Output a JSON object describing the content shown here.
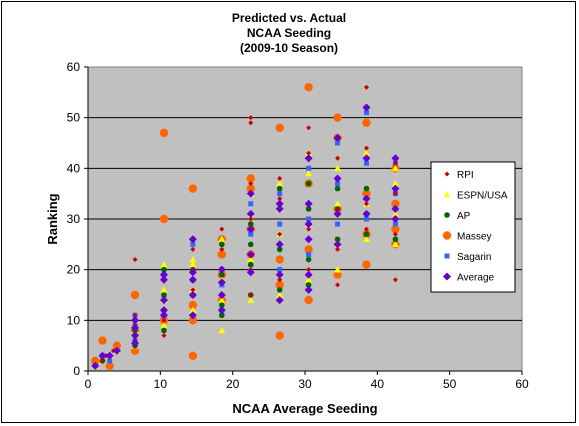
{
  "chart_data": {
    "type": "scatter",
    "title": [
      "Predicted vs. Actual",
      "NCAA Seeding",
      "(2009-10 Season)"
    ],
    "xlabel": "NCAA Average Seeding",
    "ylabel": "Ranking",
    "xlim": [
      0,
      60
    ],
    "ylim": [
      0,
      60
    ],
    "xticks": [
      0,
      10,
      20,
      30,
      40,
      50,
      60
    ],
    "yticks": [
      0,
      10,
      20,
      30,
      40,
      50,
      60
    ],
    "grid": "horizontal major gridlines",
    "legend_position": "right",
    "plot_background": "#c0c0c0",
    "series": [
      {
        "name": "RPI",
        "color": "#cc0000",
        "marker": "diamond-small",
        "points": [
          [
            1,
            1
          ],
          [
            2,
            2
          ],
          [
            2.5,
            3
          ],
          [
            3.5,
            4
          ],
          [
            6.5,
            6
          ],
          [
            6.5,
            9
          ],
          [
            6.5,
            11
          ],
          [
            6.5,
            22
          ],
          [
            10.5,
            7
          ],
          [
            10.5,
            10
          ],
          [
            10.5,
            14
          ],
          [
            10.5,
            18
          ],
          [
            14.5,
            11
          ],
          [
            14.5,
            16
          ],
          [
            14.5,
            20
          ],
          [
            14.5,
            24
          ],
          [
            18.5,
            12
          ],
          [
            18.5,
            20
          ],
          [
            18.5,
            24
          ],
          [
            18.5,
            28
          ],
          [
            22.5,
            15
          ],
          [
            22.5,
            20
          ],
          [
            22.5,
            30
          ],
          [
            22.5,
            37
          ],
          [
            22.5,
            49
          ],
          [
            22.5,
            50
          ],
          [
            26.5,
            18
          ],
          [
            26.5,
            27
          ],
          [
            26.5,
            34
          ],
          [
            26.5,
            38
          ],
          [
            30.5,
            20
          ],
          [
            30.5,
            28
          ],
          [
            30.5,
            43
          ],
          [
            30.5,
            48
          ],
          [
            34.5,
            17
          ],
          [
            34.5,
            24
          ],
          [
            34.5,
            32
          ],
          [
            34.5,
            42
          ],
          [
            38.5,
            28
          ],
          [
            38.5,
            33
          ],
          [
            38.5,
            44
          ],
          [
            38.5,
            56
          ],
          [
            42.5,
            18
          ],
          [
            42.5,
            27
          ],
          [
            42.5,
            35
          ],
          [
            42.5,
            41
          ]
        ]
      },
      {
        "name": "ESPN/USA",
        "color": "#ffff00",
        "marker": "triangle",
        "points": [
          [
            1,
            1
          ],
          [
            2,
            2
          ],
          [
            3,
            3
          ],
          [
            4,
            4
          ],
          [
            6.5,
            5
          ],
          [
            6.5,
            8
          ],
          [
            6.5,
            10
          ],
          [
            10.5,
            9
          ],
          [
            10.5,
            14
          ],
          [
            10.5,
            16
          ],
          [
            10.5,
            21
          ],
          [
            14.5,
            12
          ],
          [
            14.5,
            16
          ],
          [
            14.5,
            21
          ],
          [
            14.5,
            22
          ],
          [
            18.5,
            8
          ],
          [
            18.5,
            14
          ],
          [
            18.5,
            18
          ],
          [
            18.5,
            26
          ],
          [
            22.5,
            14
          ],
          [
            22.5,
            22
          ],
          [
            22.5,
            31
          ],
          [
            22.5,
            35
          ],
          [
            26.5,
            15
          ],
          [
            26.5,
            27
          ],
          [
            26.5,
            32
          ],
          [
            26.5,
            37
          ],
          [
            30.5,
            18
          ],
          [
            30.5,
            29
          ],
          [
            30.5,
            39
          ],
          [
            30.5,
            43
          ],
          [
            34.5,
            20
          ],
          [
            34.5,
            25
          ],
          [
            34.5,
            33
          ],
          [
            34.5,
            40
          ],
          [
            38.5,
            26
          ],
          [
            38.5,
            33
          ],
          [
            38.5,
            43
          ],
          [
            42.5,
            25
          ],
          [
            42.5,
            31
          ],
          [
            42.5,
            37
          ],
          [
            42.5,
            40
          ]
        ]
      },
      {
        "name": "AP",
        "color": "#006400",
        "marker": "circle-small",
        "points": [
          [
            1,
            1
          ],
          [
            2,
            2
          ],
          [
            3,
            3
          ],
          [
            4,
            4
          ],
          [
            6.5,
            5
          ],
          [
            6.5,
            8
          ],
          [
            6.5,
            10
          ],
          [
            10.5,
            8
          ],
          [
            10.5,
            12
          ],
          [
            10.5,
            15
          ],
          [
            10.5,
            20
          ],
          [
            14.5,
            11
          ],
          [
            14.5,
            15
          ],
          [
            14.5,
            20
          ],
          [
            14.5,
            26
          ],
          [
            18.5,
            11
          ],
          [
            18.5,
            13
          ],
          [
            18.5,
            19
          ],
          [
            18.5,
            25
          ],
          [
            22.5,
            15
          ],
          [
            22.5,
            21
          ],
          [
            22.5,
            25
          ],
          [
            22.5,
            29
          ],
          [
            26.5,
            16
          ],
          [
            26.5,
            24
          ],
          [
            26.5,
            33
          ],
          [
            26.5,
            36
          ],
          [
            30.5,
            17
          ],
          [
            30.5,
            22
          ],
          [
            30.5,
            32
          ],
          [
            30.5,
            37
          ],
          [
            34.5,
            26
          ],
          [
            34.5,
            32
          ],
          [
            34.5,
            36
          ],
          [
            38.5,
            27
          ],
          [
            38.5,
            31
          ],
          [
            38.5,
            36
          ],
          [
            42.5,
            26
          ],
          [
            42.5,
            32
          ],
          [
            42.5,
            36
          ]
        ]
      },
      {
        "name": "Massey",
        "color": "#ff6600",
        "marker": "circle-large",
        "points": [
          [
            1,
            2
          ],
          [
            2,
            6
          ],
          [
            3,
            1
          ],
          [
            4,
            5
          ],
          [
            6.5,
            4
          ],
          [
            6.5,
            8
          ],
          [
            6.5,
            15
          ],
          [
            10.5,
            10
          ],
          [
            10.5,
            30
          ],
          [
            10.5,
            47
          ],
          [
            14.5,
            3
          ],
          [
            14.5,
            10
          ],
          [
            14.5,
            13
          ],
          [
            14.5,
            36
          ],
          [
            18.5,
            14
          ],
          [
            18.5,
            19
          ],
          [
            18.5,
            23
          ],
          [
            18.5,
            26
          ],
          [
            22.5,
            23
          ],
          [
            22.5,
            28
          ],
          [
            22.5,
            36
          ],
          [
            22.5,
            38
          ],
          [
            26.5,
            7
          ],
          [
            26.5,
            17
          ],
          [
            26.5,
            22
          ],
          [
            26.5,
            48
          ],
          [
            30.5,
            14
          ],
          [
            30.5,
            24
          ],
          [
            30.5,
            37
          ],
          [
            30.5,
            56
          ],
          [
            34.5,
            19
          ],
          [
            34.5,
            32
          ],
          [
            34.5,
            46
          ],
          [
            34.5,
            50
          ],
          [
            38.5,
            21
          ],
          [
            38.5,
            27
          ],
          [
            38.5,
            35
          ],
          [
            38.5,
            49
          ],
          [
            42.5,
            25
          ],
          [
            42.5,
            28
          ],
          [
            42.5,
            33
          ],
          [
            42.5,
            40
          ]
        ]
      },
      {
        "name": "Sagarin",
        "color": "#3366ff",
        "marker": "square",
        "points": [
          [
            1,
            1
          ],
          [
            2,
            3
          ],
          [
            3,
            2
          ],
          [
            4,
            4
          ],
          [
            6.5,
            6
          ],
          [
            6.5,
            9
          ],
          [
            6.5,
            11
          ],
          [
            10.5,
            11
          ],
          [
            10.5,
            15
          ],
          [
            10.5,
            19
          ],
          [
            14.5,
            15
          ],
          [
            14.5,
            18
          ],
          [
            14.5,
            25
          ],
          [
            18.5,
            12
          ],
          [
            18.5,
            17
          ],
          [
            18.5,
            20
          ],
          [
            22.5,
            21
          ],
          [
            22.5,
            27
          ],
          [
            22.5,
            33
          ],
          [
            26.5,
            20
          ],
          [
            26.5,
            29
          ],
          [
            26.5,
            35
          ],
          [
            30.5,
            23
          ],
          [
            30.5,
            30
          ],
          [
            30.5,
            40
          ],
          [
            34.5,
            29
          ],
          [
            34.5,
            37
          ],
          [
            34.5,
            45
          ],
          [
            38.5,
            30
          ],
          [
            38.5,
            41
          ],
          [
            38.5,
            51
          ],
          [
            42.5,
            29
          ],
          [
            42.5,
            35
          ],
          [
            42.5,
            41
          ]
        ]
      },
      {
        "name": "Average",
        "color": "#6600cc",
        "marker": "diamond",
        "points": [
          [
            1,
            1
          ],
          [
            2,
            3
          ],
          [
            3,
            3
          ],
          [
            4,
            4
          ],
          [
            6.5,
            5.5
          ],
          [
            6.5,
            7
          ],
          [
            6.5,
            8.5
          ],
          [
            6.5,
            10
          ],
          [
            10.5,
            11
          ],
          [
            10.5,
            12
          ],
          [
            10.5,
            14
          ],
          [
            10.5,
            18
          ],
          [
            10.5,
            19
          ],
          [
            14.5,
            11
          ],
          [
            14.5,
            15
          ],
          [
            14.5,
            18
          ],
          [
            14.5,
            19.5
          ],
          [
            14.5,
            26
          ],
          [
            18.5,
            12
          ],
          [
            18.5,
            15
          ],
          [
            18.5,
            17.5
          ],
          [
            18.5,
            20
          ],
          [
            22.5,
            19.5
          ],
          [
            22.5,
            23
          ],
          [
            22.5,
            28
          ],
          [
            22.5,
            31
          ],
          [
            22.5,
            35
          ],
          [
            26.5,
            14
          ],
          [
            26.5,
            19
          ],
          [
            26.5,
            25
          ],
          [
            26.5,
            32
          ],
          [
            26.5,
            33
          ],
          [
            30.5,
            16
          ],
          [
            30.5,
            19
          ],
          [
            30.5,
            26
          ],
          [
            30.5,
            29
          ],
          [
            30.5,
            33
          ],
          [
            30.5,
            42
          ],
          [
            34.5,
            25
          ],
          [
            34.5,
            31
          ],
          [
            34.5,
            38
          ],
          [
            34.5,
            46
          ],
          [
            38.5,
            31
          ],
          [
            38.5,
            34
          ],
          [
            38.5,
            42
          ],
          [
            38.5,
            52
          ],
          [
            42.5,
            30
          ],
          [
            42.5,
            32
          ],
          [
            42.5,
            36
          ],
          [
            42.5,
            42
          ]
        ]
      }
    ]
  }
}
